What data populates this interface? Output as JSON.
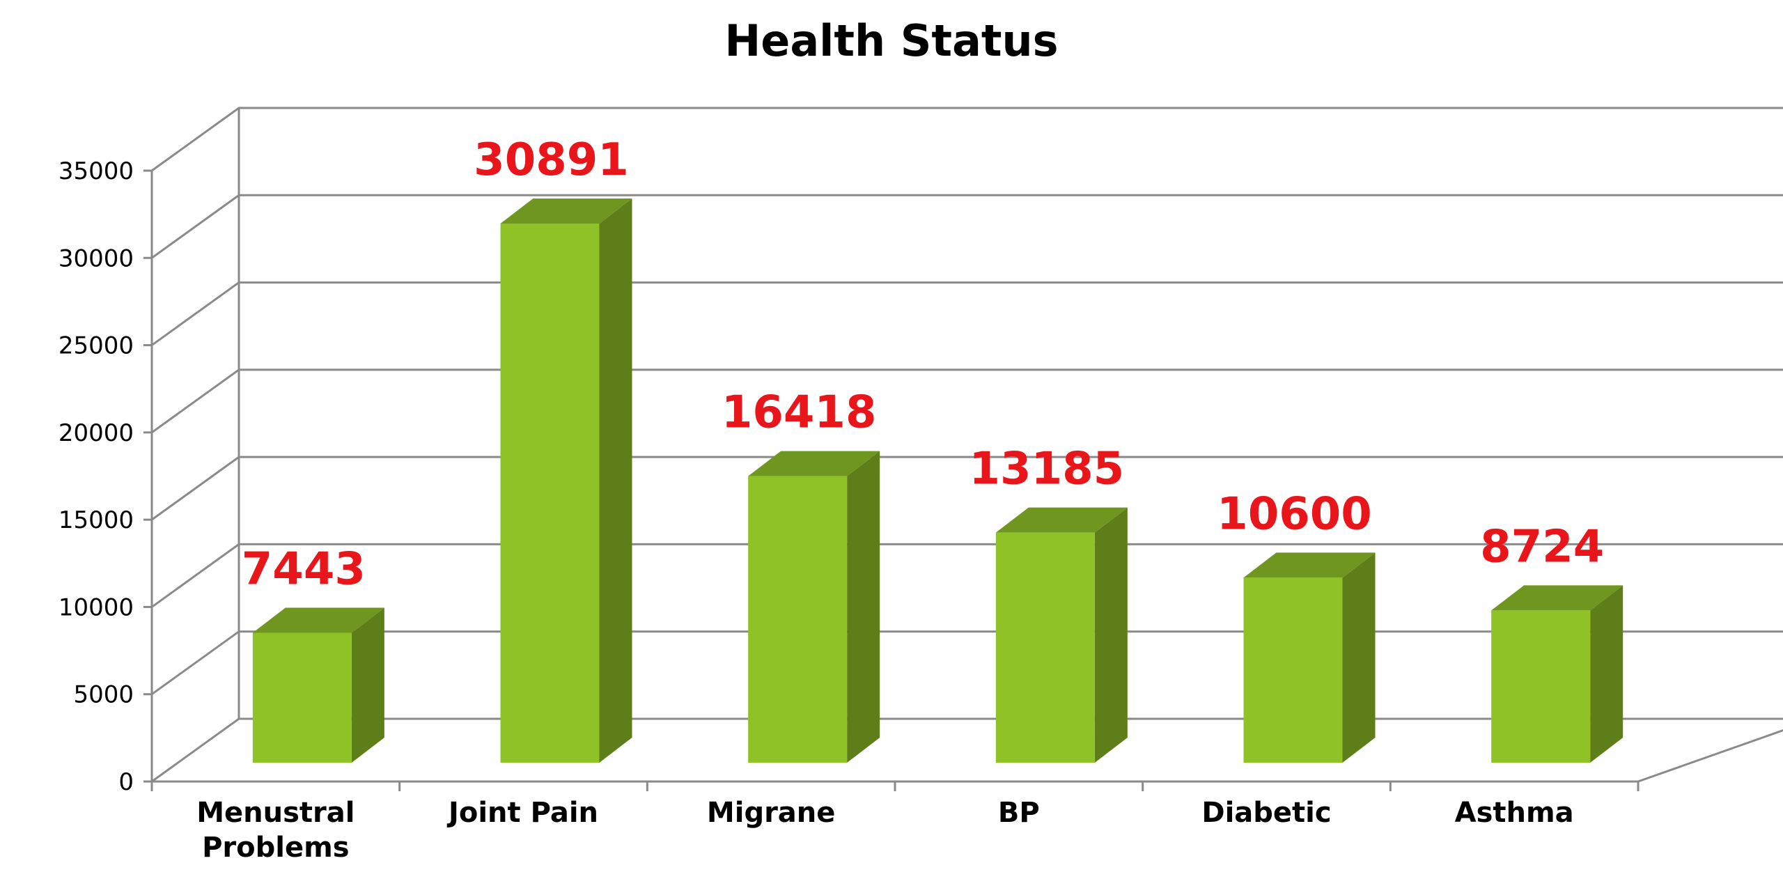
{
  "chart_data": {
    "type": "bar",
    "title": "Health Status",
    "xlabel": "",
    "ylabel": "",
    "categories": [
      "Menustral Problems",
      "Joint Pain",
      "Migrane",
      "BP",
      "Diabetic",
      "Asthma"
    ],
    "category_lines": [
      [
        "Menustral",
        "Problems"
      ],
      [
        "Joint Pain"
      ],
      [
        "Migrane"
      ],
      [
        "BP"
      ],
      [
        "Diabetic"
      ],
      [
        "Asthma"
      ]
    ],
    "values": [
      7443,
      30891,
      16418,
      13185,
      10600,
      8724
    ],
    "data_labels": [
      "7443",
      "30891",
      "16418",
      "13185",
      "10600",
      "8724"
    ],
    "ylim": [
      0,
      35000
    ],
    "yticks": [
      "0",
      "5000",
      "10000",
      "15000",
      "20000",
      "25000",
      "30000",
      "35000"
    ],
    "grid": true,
    "style": "3d-column",
    "colors": {
      "bar_front": "#8fc227",
      "bar_side": "#5e7e1a",
      "bar_top": "#6f961f",
      "data_label": "#e8161a",
      "grid": "#8a8a8a"
    }
  }
}
